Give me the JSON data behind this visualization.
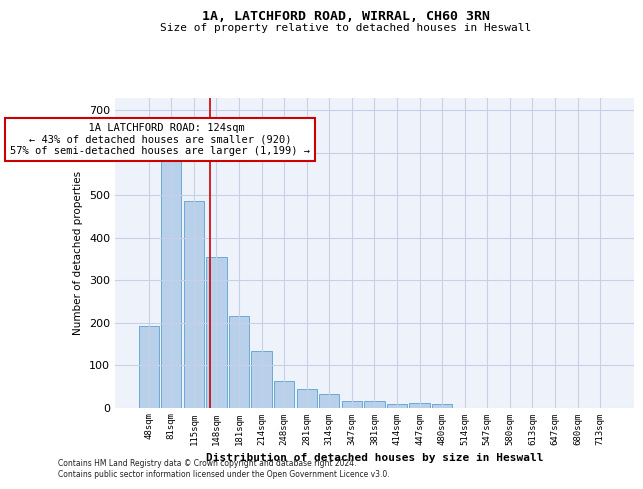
{
  "title_line1": "1A, LATCHFORD ROAD, WIRRAL, CH60 3RN",
  "title_line2": "Size of property relative to detached houses in Heswall",
  "xlabel": "Distribution of detached houses by size in Heswall",
  "ylabel": "Number of detached properties",
  "categories": [
    "48sqm",
    "81sqm",
    "115sqm",
    "148sqm",
    "181sqm",
    "214sqm",
    "248sqm",
    "281sqm",
    "314sqm",
    "347sqm",
    "381sqm",
    "414sqm",
    "447sqm",
    "480sqm",
    "514sqm",
    "547sqm",
    "580sqm",
    "613sqm",
    "647sqm",
    "680sqm",
    "713sqm"
  ],
  "values": [
    192,
    583,
    487,
    355,
    215,
    132,
    63,
    44,
    31,
    16,
    16,
    9,
    10,
    9,
    0,
    0,
    0,
    0,
    0,
    0,
    0
  ],
  "bar_color": "#b8d0ea",
  "bar_edge_color": "#6aaad4",
  "property_label": "1A LATCHFORD ROAD: 124sqm",
  "pct_smaller": 43,
  "num_smaller": 920,
  "pct_larger_semi": 57,
  "num_larger_semi": 1199,
  "vline_color": "#cc0000",
  "annotation_box_color": "#cc0000",
  "ylim": [
    0,
    730
  ],
  "yticks": [
    0,
    100,
    200,
    300,
    400,
    500,
    600,
    700
  ],
  "footnote1": "Contains HM Land Registry data © Crown copyright and database right 2024.",
  "footnote2": "Contains public sector information licensed under the Open Government Licence v3.0.",
  "bg_color": "#eef2fb",
  "grid_color": "#c8d0e8",
  "vline_x_index": 2.73
}
